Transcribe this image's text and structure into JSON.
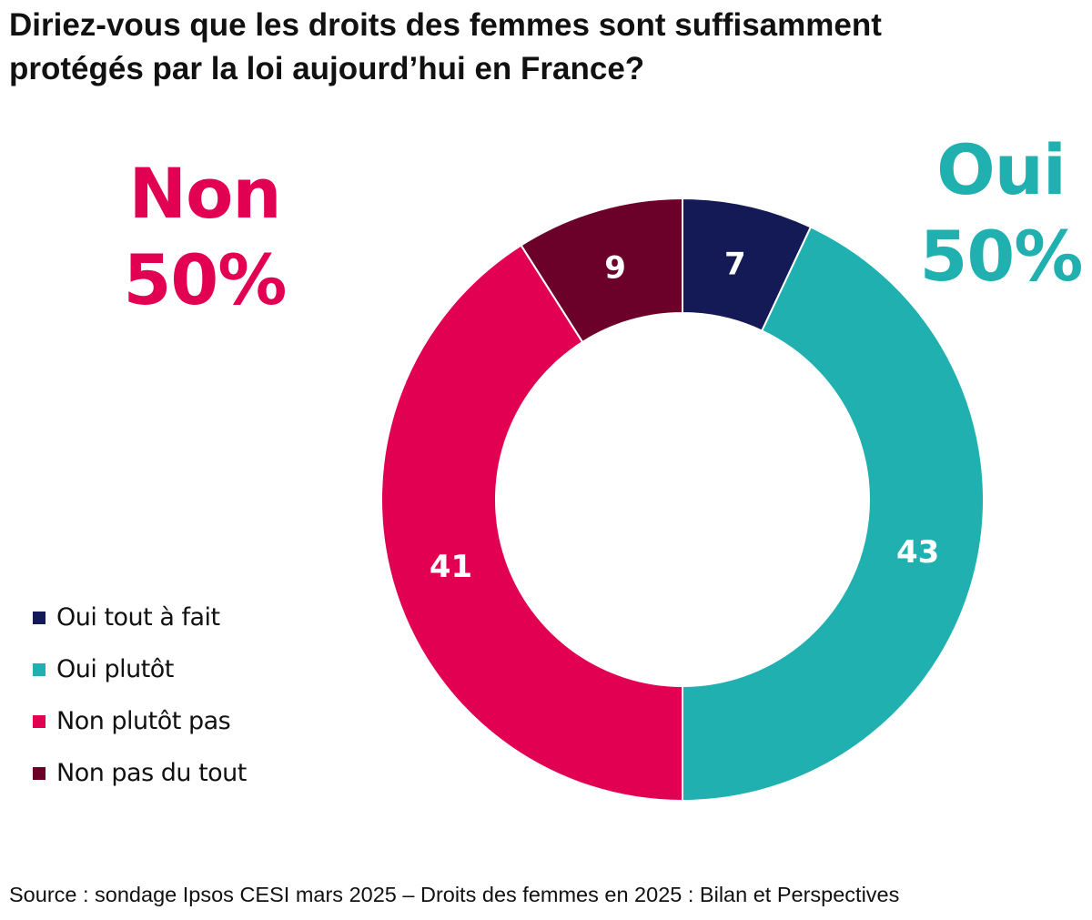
{
  "title_lines": [
    "Diriez-vous que les droits des femmes sont suffisamment",
    "protégés par la loi aujourd’hui en France?"
  ],
  "summary": {
    "non_word": "Non",
    "non_pct": "50%",
    "oui_word": "Oui",
    "oui_pct": "50%"
  },
  "colors": {
    "oui_tout_a_fait": "#141a56",
    "oui_plutot": "#20b0b0",
    "non_plutot_pas": "#e20052",
    "non_pas_du_tout": "#6b0029",
    "non_accent": "#e20052",
    "oui_accent": "#20b0b0"
  },
  "chart_data": {
    "type": "pie",
    "title": "Diriez-vous que les droits des femmes sont suffisamment protégés par la loi aujourd’hui en France?",
    "donut": true,
    "slices": [
      {
        "label": "Oui tout à fait",
        "value": 7,
        "data_label": "7",
        "color": "#141a56"
      },
      {
        "label": "Oui plutôt",
        "value": 43,
        "data_label": "43",
        "color": "#20b0b0"
      },
      {
        "label": "Non plutôt pas",
        "value": 41,
        "data_label": "41",
        "color": "#e20052"
      },
      {
        "label": "Non pas du tout",
        "value": 9,
        "data_label": "9",
        "color": "#6b0029"
      }
    ],
    "legend_position": "left"
  },
  "legend": [
    {
      "label": "Oui tout à fait",
      "color": "#141a56"
    },
    {
      "label": "Oui plutôt",
      "color": "#20b0b0"
    },
    {
      "label": "Non plutôt pas",
      "color": "#e20052"
    },
    {
      "label": "Non pas du tout",
      "color": "#6b0029"
    }
  ],
  "source": "Source : sondage Ipsos CESI mars 2025 – Droits des femmes en 2025 : Bilan et Perspectives"
}
